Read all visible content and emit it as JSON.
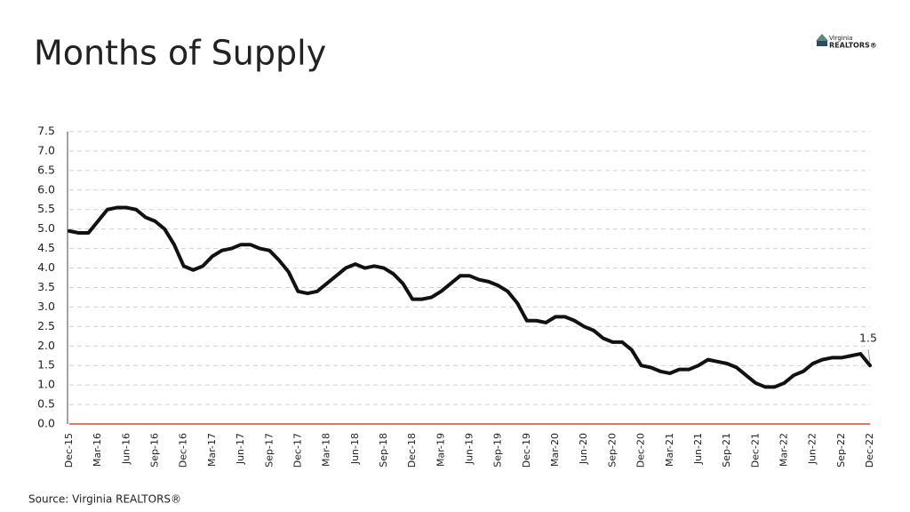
{
  "chart_data": {
    "type": "line",
    "title": "Months of Supply",
    "logo": [
      "Virginia",
      "REALTORS®"
    ],
    "source": "Source: Virginia REALTORS®",
    "categories": [
      "Dec-15",
      null,
      null,
      "Mar-16",
      null,
      null,
      "Jun-16",
      null,
      null,
      "Sep-16",
      null,
      null,
      "Dec-16",
      null,
      null,
      "Mar-17",
      null,
      null,
      "Jun-17",
      null,
      null,
      "Sep-17",
      null,
      null,
      "Dec-17",
      null,
      null,
      "Mar-18",
      null,
      null,
      "Jun-18",
      null,
      null,
      "Sep-18",
      null,
      null,
      "Dec-18",
      null,
      null,
      "Mar-19",
      null,
      null,
      "Jun-19",
      null,
      null,
      "Sep-19",
      null,
      null,
      "Dec-19",
      null,
      null,
      "Mar-20",
      null,
      null,
      "Jun-20",
      null,
      null,
      "Sep-20",
      null,
      null,
      "Dec-20",
      null,
      null,
      "Mar-21",
      null,
      null,
      "Jun-21",
      null,
      null,
      "Sep-21",
      null,
      null,
      "Dec-21",
      null,
      null,
      "Mar-22",
      null,
      null,
      "Jun-22",
      null,
      null,
      "Sep-22",
      null,
      null,
      "Dec-22"
    ],
    "values": [
      4.95,
      4.9,
      4.9,
      5.2,
      5.5,
      5.55,
      5.55,
      5.5,
      5.3,
      5.2,
      5.0,
      4.6,
      4.05,
      3.95,
      4.05,
      4.3,
      4.45,
      4.5,
      4.6,
      4.6,
      4.5,
      4.45,
      4.2,
      3.9,
      3.4,
      3.35,
      3.4,
      3.6,
      3.8,
      4.0,
      4.1,
      4.0,
      4.05,
      4.0,
      3.85,
      3.6,
      3.2,
      3.2,
      3.25,
      3.4,
      3.6,
      3.8,
      3.8,
      3.7,
      3.65,
      3.55,
      3.4,
      3.1,
      2.65,
      2.65,
      2.6,
      2.75,
      2.75,
      2.65,
      2.5,
      2.4,
      2.2,
      2.1,
      2.1,
      1.9,
      1.5,
      1.45,
      1.35,
      1.3,
      1.4,
      1.4,
      1.5,
      1.65,
      1.6,
      1.55,
      1.45,
      1.25,
      1.05,
      0.95,
      0.95,
      1.05,
      1.25,
      1.35,
      1.55,
      1.65,
      1.7,
      1.7,
      1.75,
      1.8,
      1.5
    ],
    "color": "#111111",
    "baseline_color": "#e0463c",
    "label_last": true,
    "grid": true,
    "ylim": [
      0,
      7.5
    ],
    "yticks": [
      {
        "value": 0,
        "label": "0.0"
      },
      0.5,
      {
        "value": 1,
        "label": "1.0"
      },
      1.5,
      {
        "value": 2,
        "label": "2.0"
      },
      2.5,
      {
        "value": 3,
        "label": "3.0"
      },
      3.5,
      {
        "value": 4,
        "label": "4.0"
      },
      4.5,
      {
        "value": 5,
        "label": "5.0"
      },
      5.5,
      {
        "value": 6,
        "label": "6.0"
      },
      6.5,
      {
        "value": 7,
        "label": "7.0"
      },
      7.5
    ]
  }
}
